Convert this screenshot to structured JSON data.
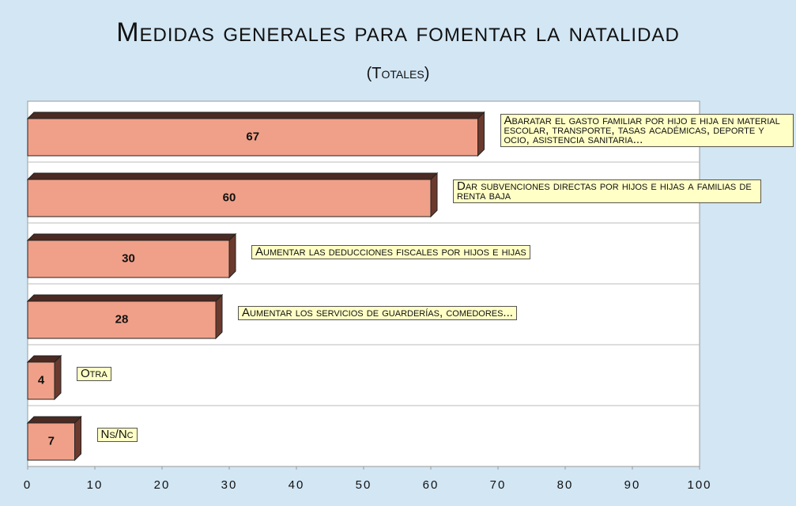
{
  "chart_data": {
    "type": "bar",
    "orientation": "horizontal",
    "title": "Medidas generales para fomentar la natalidad",
    "subtitle": "(Totales)",
    "categories": [
      "Abaratar el gasto familiar por hijo e hija en material escolar, transporte, tasas académicas, deporte y ocio, asistencia sanitaria...",
      "Dar subvenciones directas por hijos e hijas a familias de renta baja",
      "Aumentar las deducciones fiscales por hijos e hijas",
      "Aumentar los servicios de guarderías, comedores...",
      "Otra",
      "Ns/Nc"
    ],
    "values": [
      67,
      60,
      30,
      28,
      4,
      7
    ],
    "color": "#f0a088",
    "xlim": [
      0,
      100
    ],
    "xticks": [
      0,
      10,
      20,
      30,
      40,
      50,
      60,
      70,
      80,
      90,
      100
    ]
  }
}
